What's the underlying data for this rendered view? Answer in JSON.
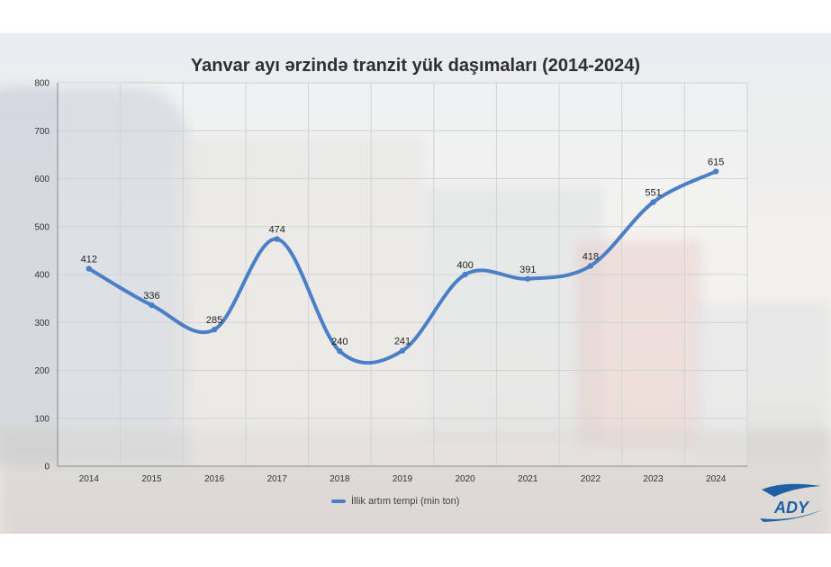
{
  "chart_data": {
    "type": "line",
    "title": "Yanvar ayı ərzində tranzit yük daşımaları (2014-2024)",
    "xlabel": "",
    "ylabel": "",
    "categories": [
      "2014",
      "2015",
      "2016",
      "2017",
      "2018",
      "2019",
      "2020",
      "2021",
      "2022",
      "2023",
      "2024"
    ],
    "series": [
      {
        "name": "İllik artım tempi (min ton)",
        "values": [
          412,
          336,
          285,
          474,
          240,
          241,
          400,
          391,
          418,
          551,
          615
        ]
      }
    ],
    "ylim": [
      0,
      800
    ],
    "yticks": [
      "0",
      "100",
      "200",
      "300",
      "400",
      "500",
      "600",
      "700",
      "800"
    ],
    "grid": true,
    "legend_position": "bottom",
    "smooth": true
  },
  "colors": {
    "line": "#4a7fc8",
    "grid": "#d0d3d6",
    "text": "#333333"
  },
  "logo": {
    "text": "ADY"
  }
}
